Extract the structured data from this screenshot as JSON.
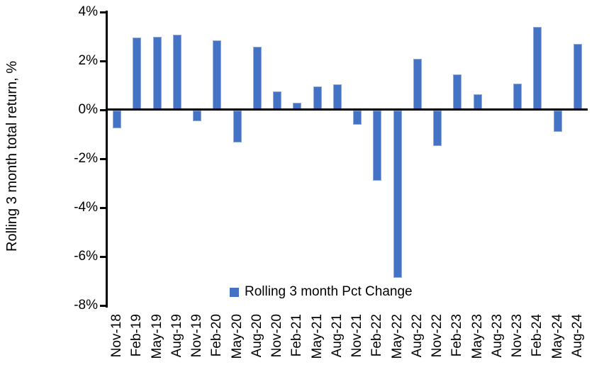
{
  "chart_data": {
    "type": "bar",
    "title": "",
    "ylabel": "Rolling 3 month total return, %",
    "xlabel": "",
    "categories": [
      "Nov-18",
      "Feb-19",
      "May-19",
      "Aug-19",
      "Nov-19",
      "Feb-20",
      "May-20",
      "Aug-20",
      "Nov-20",
      "Feb-21",
      "May-21",
      "Aug-21",
      "Nov-21",
      "Feb-22",
      "May-22",
      "Aug-22",
      "Nov-22",
      "Feb-23",
      "May-23",
      "Aug-23",
      "Nov-23",
      "Feb-24",
      "May-24",
      "Aug-24"
    ],
    "series": [
      {
        "name": "Rolling 3 month Pct Change",
        "values": [
          -0.73,
          2.97,
          3.0,
          3.08,
          -0.43,
          2.83,
          -1.3,
          2.58,
          0.76,
          0.3,
          0.97,
          1.03,
          -0.58,
          -2.88,
          -6.85,
          2.08,
          -1.44,
          1.46,
          0.64,
          0.0,
          1.06,
          3.38,
          -0.87,
          2.7
        ]
      }
    ],
    "ylim": [
      -8,
      4
    ],
    "yticks": [
      {
        "value": 4,
        "label": "4%"
      },
      {
        "value": 2,
        "label": "2%"
      },
      {
        "value": 0,
        "label": "0%"
      },
      {
        "value": -2,
        "label": "-2%"
      },
      {
        "value": -4,
        "label": "-4%"
      },
      {
        "value": -6,
        "label": "-6%"
      },
      {
        "value": -8,
        "label": "-8%"
      }
    ],
    "grid": false,
    "legend_position": "bottom-center",
    "colors": {
      "bar_fill": "#4472C4",
      "bar_border": "#8FAADC",
      "axis": "#000000",
      "text": "#000000"
    }
  }
}
